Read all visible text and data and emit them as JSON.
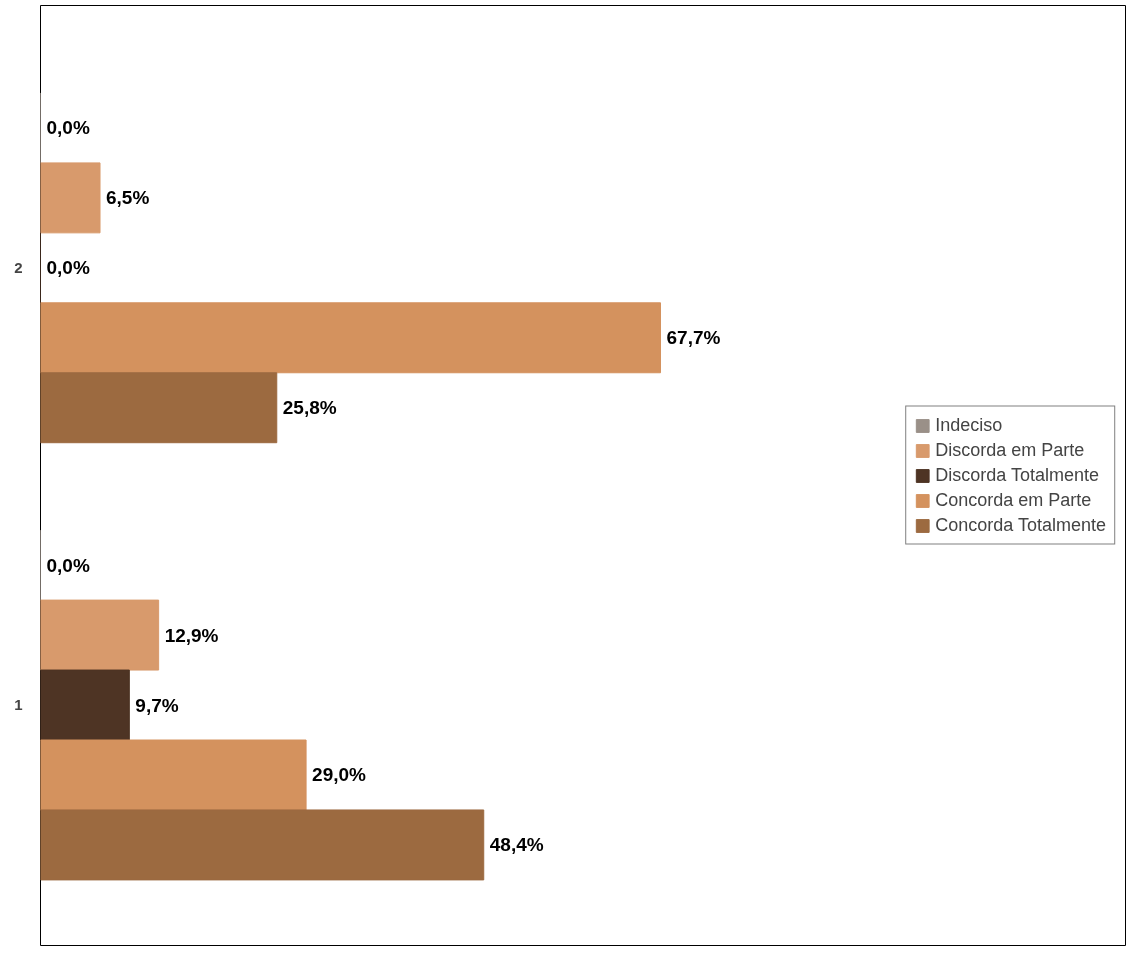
{
  "chart_data": {
    "type": "bar",
    "orientation": "horizontal",
    "categories": [
      "2",
      "1"
    ],
    "series": [
      {
        "name": "Indeciso",
        "color": "#9a9088",
        "values": [
          0.0,
          0.0
        ],
        "value_labels": [
          "0,0%",
          "0,0%"
        ]
      },
      {
        "name": "Discorda em Parte",
        "color": "#d89a6c",
        "values": [
          6.5,
          12.9
        ],
        "value_labels": [
          "6,5%",
          "12,9%"
        ]
      },
      {
        "name": "Discorda Totalmente",
        "color": "#4e3424",
        "values": [
          0.0,
          9.7
        ],
        "value_labels": [
          "0,0%",
          "9,7%"
        ]
      },
      {
        "name": "Concorda em Parte",
        "color": "#d4925e",
        "values": [
          67.7,
          29.0
        ],
        "value_labels": [
          "67,7%",
          "29,0%"
        ]
      },
      {
        "name": "Concorda Totalmente",
        "color": "#9c6a40",
        "values": [
          25.8,
          48.4
        ],
        "value_labels": [
          "25,8%",
          "48,4%"
        ]
      }
    ],
    "legend": "right",
    "grid": false
  }
}
